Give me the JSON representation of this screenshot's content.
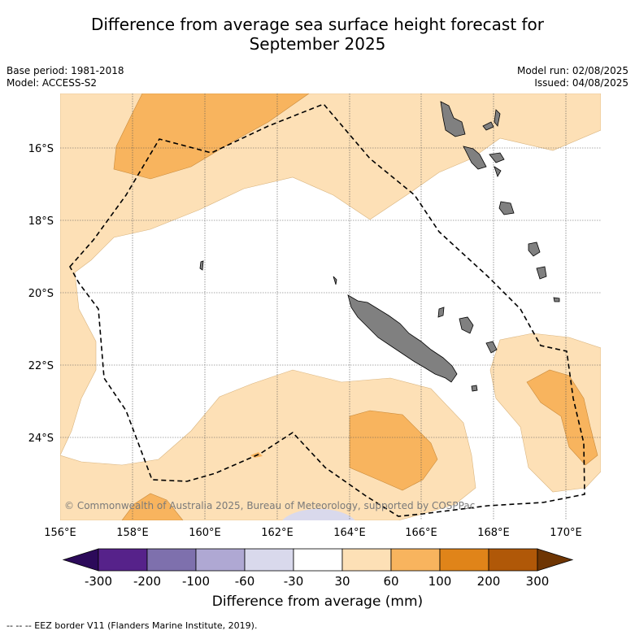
{
  "title": "Difference from average sea surface height forecast for September 2025",
  "title_lines": [
    "Difference from average sea surface height forecast for",
    "September 2025"
  ],
  "meta": {
    "base_period": "Base period: 1981-2018",
    "model": "Model: ACCESS-S2",
    "model_run": "Model run: 02/08/2025",
    "issued": "Issued: 04/08/2025"
  },
  "map": {
    "lon_labels": [
      "156°E",
      "158°E",
      "160°E",
      "162°E",
      "164°E",
      "166°E",
      "168°E",
      "170°E"
    ],
    "lat_labels": [
      "16°S",
      "18°S",
      "20°S",
      "22°S",
      "24°S"
    ],
    "copyright": "© Commonwealth of Australia 2025, Bureau of Meteorology, supported by COSPPac"
  },
  "colorbar": {
    "labels": [
      "-300",
      "-200",
      "-100",
      "-60",
      "-30",
      "30",
      "60",
      "100",
      "200",
      "300"
    ],
    "colors": [
      "#2c0a5a",
      "#56228a",
      "#7e70ad",
      "#afa8d3",
      "#d9d9ec",
      "#ffffff",
      "#fde0b6",
      "#f8b45e",
      "#e08419",
      "#b05808",
      "#6e3503"
    ],
    "title": "Difference from average (mm)"
  },
  "legend_footnote": "-- -- -- EEZ border V11 (Flanders Marine Institute, 2019)."
}
